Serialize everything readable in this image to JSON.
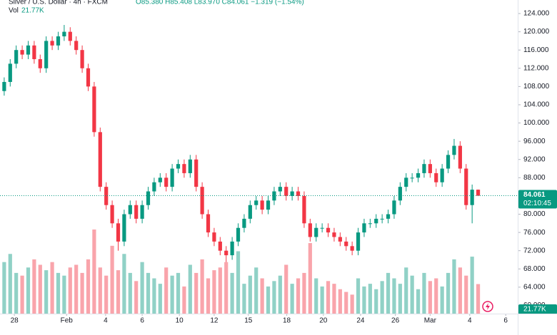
{
  "chart_data": {
    "type": "candlestick",
    "title": "Silver / U.S. Dollar · 4h · FXCM",
    "ohlc_text": "O85.380 H85.408 L83.970 C84.061 −1.319 (−1.54%)",
    "volume_title": "Vol",
    "volume_label": "21.77K",
    "last_price": 84.061,
    "countdown": "02:10:45",
    "up_color": "#089981",
    "down_color": "#f23645",
    "open": [
      107,
      109,
      113,
      116,
      115,
      117,
      114,
      112,
      118,
      117,
      119,
      120,
      118,
      116,
      112,
      108,
      98,
      86,
      82,
      78,
      74,
      80,
      82,
      79,
      82,
      85,
      87,
      88,
      86,
      90,
      91,
      89,
      92,
      86,
      80,
      76,
      74,
      72,
      71,
      74,
      77,
      79,
      82,
      83,
      81,
      83,
      85,
      86,
      84,
      85,
      84,
      78,
      75,
      77,
      77,
      76,
      75,
      74,
      73,
      72,
      76,
      78,
      78,
      79,
      79,
      80,
      83,
      86,
      88,
      88,
      89,
      91,
      89,
      87,
      90,
      93,
      95,
      90,
      82,
      85.38
    ],
    "high": [
      110,
      114,
      117,
      117,
      118,
      118,
      115,
      119,
      119,
      120,
      121.5,
      121,
      119,
      117,
      113,
      109,
      99,
      87,
      83,
      79,
      81,
      83,
      83,
      83,
      86,
      88,
      89,
      89,
      91,
      92,
      92,
      93,
      93,
      87,
      81,
      77,
      75,
      73,
      75,
      78,
      80,
      83,
      84,
      84,
      84,
      86,
      87,
      87,
      86,
      86,
      85,
      79,
      78,
      78,
      78,
      77,
      76,
      75,
      74,
      77,
      79,
      79,
      80,
      80,
      81,
      84,
      87,
      89,
      89,
      90,
      92,
      92,
      90,
      91,
      94,
      96.5,
      96,
      91,
      86.5,
      85.408
    ],
    "low": [
      106,
      108,
      112,
      114,
      114,
      113,
      111,
      111,
      116,
      116,
      118,
      117,
      115,
      111,
      107,
      97,
      85,
      81,
      77,
      72,
      73,
      79,
      78,
      78,
      81,
      84,
      86,
      85,
      85,
      89,
      88,
      88,
      85,
      79,
      75,
      73,
      71,
      69.5,
      70,
      73,
      76,
      78,
      81,
      80,
      80,
      82,
      84,
      83,
      83,
      83,
      77,
      74,
      74,
      76,
      75,
      74,
      73,
      72,
      71,
      71,
      75,
      77,
      77,
      78,
      78,
      79,
      82,
      85,
      87,
      87,
      88,
      88,
      86,
      86,
      89,
      92,
      89,
      81,
      78,
      83.97
    ],
    "close": [
      109,
      113,
      116,
      115,
      117,
      114,
      112,
      118,
      117,
      119,
      120,
      118,
      116,
      112,
      108,
      98,
      86,
      82,
      78,
      74,
      80,
      82,
      79,
      82,
      85,
      87,
      88,
      86,
      90,
      91,
      89,
      92,
      86,
      80,
      76,
      74,
      72,
      71,
      74,
      77,
      79,
      82,
      83,
      81,
      83,
      85,
      86,
      84,
      85,
      84,
      78,
      75,
      77,
      77,
      76,
      75,
      74,
      73,
      72,
      76,
      78,
      78,
      79,
      79,
      80,
      83,
      86,
      88,
      88,
      89,
      91,
      89,
      87,
      90,
      93,
      95,
      90,
      82,
      85.38,
      84.061
    ],
    "volume": [
      38,
      44,
      30,
      28,
      34,
      40,
      36,
      32,
      38,
      30,
      28,
      34,
      36,
      30,
      40,
      62,
      34,
      28,
      50,
      32,
      44,
      30,
      24,
      38,
      30,
      26,
      22,
      34,
      28,
      30,
      20,
      36,
      30,
      40,
      26,
      32,
      34,
      38,
      30,
      46,
      22,
      28,
      34,
      26,
      20,
      24,
      28,
      36,
      22,
      26,
      30,
      52,
      26,
      20,
      24,
      22,
      18,
      16,
      14,
      26,
      20,
      22,
      18,
      24,
      30,
      26,
      22,
      34,
      28,
      18,
      30,
      24,
      26,
      20,
      30,
      40,
      34,
      28,
      42,
      21.77
    ],
    "xlim": [
      -0.7,
      85.6
    ],
    "xticks": [
      {
        "value": 1.7,
        "label": "28"
      },
      {
        "value": 10.4,
        "label": "Feb"
      },
      {
        "value": 16.9,
        "label": "4"
      },
      {
        "value": 23,
        "label": "6"
      },
      {
        "value": 29.2,
        "label": "10"
      },
      {
        "value": 35,
        "label": "12"
      },
      {
        "value": 40.7,
        "label": "15"
      },
      {
        "value": 47.1,
        "label": "18"
      },
      {
        "value": 53.2,
        "label": "20"
      },
      {
        "value": 59.4,
        "label": "24"
      },
      {
        "value": 65.2,
        "label": "26"
      },
      {
        "value": 71,
        "label": "Mar"
      },
      {
        "value": 77.6,
        "label": "4"
      },
      {
        "value": 83.6,
        "label": "6"
      }
    ],
    "ylim": [
      58.2,
      126.97
    ],
    "yticks": [
      {
        "value": 60,
        "label": "60.000"
      },
      {
        "value": 64,
        "label": "64.000"
      },
      {
        "value": 68,
        "label": "68.000"
      },
      {
        "value": 72,
        "label": "72.000"
      },
      {
        "value": 76,
        "label": "76.000"
      },
      {
        "value": 80,
        "label": "80.000"
      },
      {
        "value": 84,
        "label": "84.000"
      },
      {
        "value": 88,
        "label": "88.000"
      },
      {
        "value": 92,
        "label": "92.000"
      },
      {
        "value": 96,
        "label": "96.000"
      },
      {
        "value": 100,
        "label": "100.000"
      },
      {
        "value": 104,
        "label": "104.000"
      },
      {
        "value": 108,
        "label": "108.000"
      },
      {
        "value": 112,
        "label": "112.000"
      },
      {
        "value": 116,
        "label": "116.000"
      },
      {
        "value": 120,
        "label": "120.000"
      },
      {
        "value": 124,
        "label": "124.000"
      }
    ]
  }
}
